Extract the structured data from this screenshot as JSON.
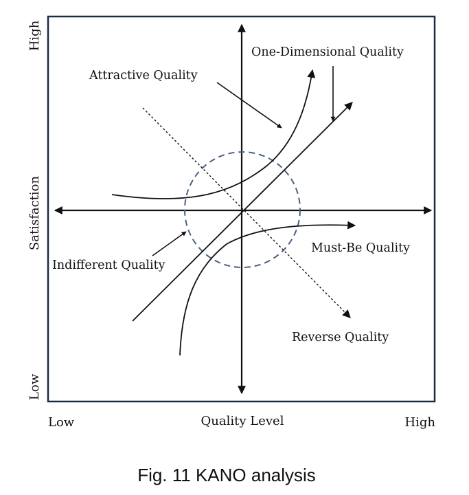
{
  "diagram": {
    "frame_color": "#1b2b44",
    "ink_color": "#111111",
    "circle_color": "#4a6080",
    "y_axis": {
      "high": "High",
      "title": "Satisfaction",
      "low": "Low"
    },
    "x_axis": {
      "low": "Low",
      "title": "Quality Level",
      "high": "High"
    },
    "curves": {
      "attractive": "Attractive Quality",
      "one_dimensional": "One-Dimensional Quality",
      "must_be": "Must-Be Quality",
      "indifferent": "Indifferent Quality",
      "reverse": "Reverse Quality"
    }
  },
  "caption": "Fig. 11 KANO analysis"
}
